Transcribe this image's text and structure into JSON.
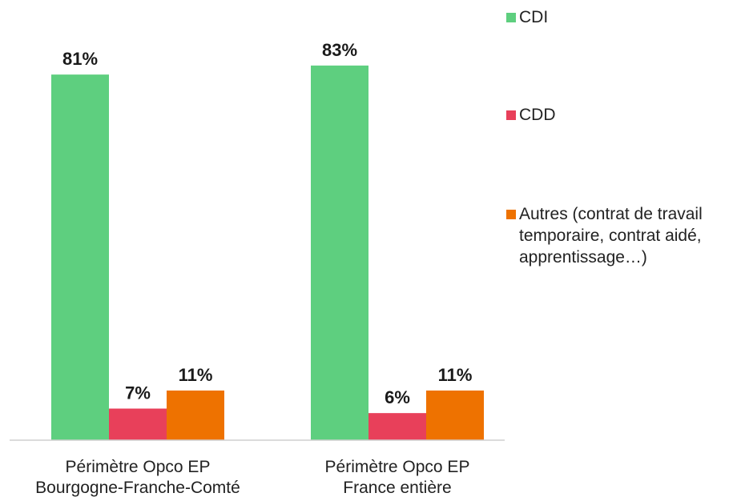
{
  "chart_data": {
    "type": "bar",
    "categories": [
      "Périmètre Opco EP\nBourgogne-Franche-Comté",
      "Périmètre Opco EP\nFrance entière"
    ],
    "series": [
      {
        "name": "CDI",
        "values": [
          81,
          83
        ],
        "labels": [
          "81%",
          "83%"
        ],
        "color": "#5ecf7f"
      },
      {
        "name": "CDD",
        "values": [
          7,
          6
        ],
        "labels": [
          "7%",
          "6%"
        ],
        "color": "#e8405a"
      },
      {
        "name": "Autres (contrat de travail\ntemporaire, contrat aidé,\napprentissage…)",
        "values": [
          11,
          11
        ],
        "labels": [
          "11%",
          "11%"
        ],
        "color": "#ee7200"
      }
    ],
    "ylim": [
      0,
      100
    ],
    "grid": false,
    "legend_position": "right"
  }
}
